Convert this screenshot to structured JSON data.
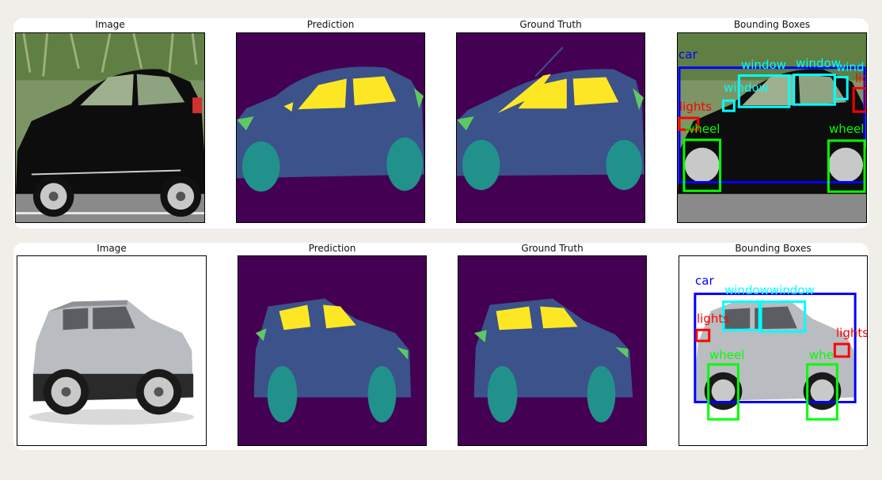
{
  "rows": [
    {
      "panels": [
        {
          "title": "Image"
        },
        {
          "title": "Prediction"
        },
        {
          "title": "Ground Truth"
        },
        {
          "title": "Bounding Boxes"
        }
      ],
      "boxes": [
        {
          "label": "car"
        },
        {
          "label": "window"
        },
        {
          "label": "window"
        },
        {
          "label": "wind"
        },
        {
          "label": "window"
        },
        {
          "label": "lights"
        },
        {
          "label": "lig"
        },
        {
          "label": "wheel"
        },
        {
          "label": "wheel"
        }
      ]
    },
    {
      "panels": [
        {
          "title": "Image"
        },
        {
          "title": "Prediction"
        },
        {
          "title": "Ground Truth"
        },
        {
          "title": "Bounding Boxes"
        }
      ],
      "boxes": [
        {
          "label": "car"
        },
        {
          "label": "windowwindow"
        },
        {
          "label": "lights"
        },
        {
          "label": "lights"
        },
        {
          "label": "wheel"
        },
        {
          "label": "whe"
        }
      ]
    }
  ],
  "colors": {
    "background": "#440154",
    "car_body": "#3b528b",
    "window": "#fde725",
    "wheel": "#21918c",
    "lights": "#5ec962",
    "box_car": "#0000ff",
    "box_window": "#00ffff",
    "box_lights": "#ff0000",
    "box_wheel": "#00ff00"
  }
}
